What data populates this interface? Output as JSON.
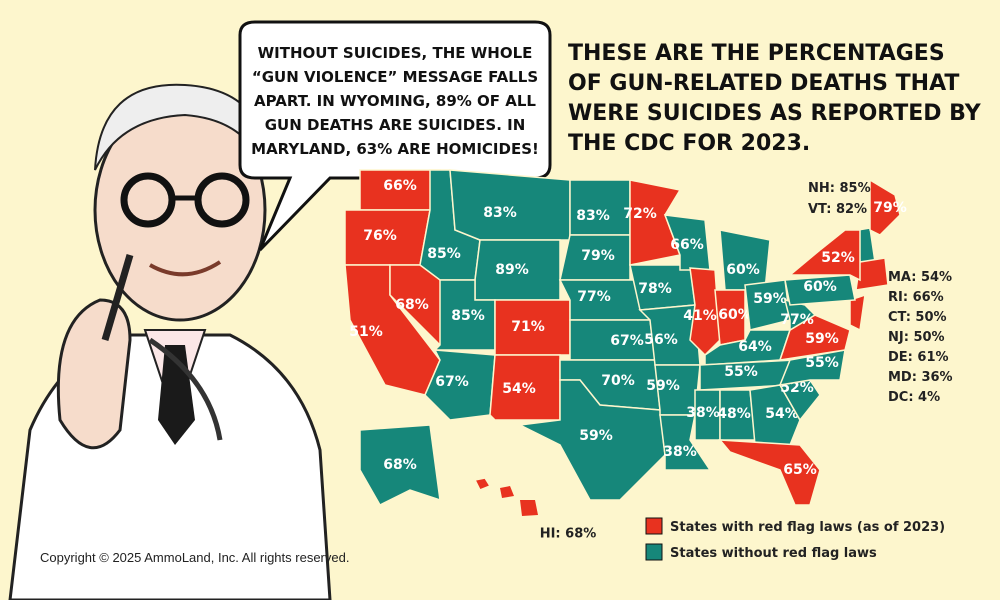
{
  "speech_bubble": [
    "WITHOUT SUICIDES, THE WHOLE",
    "“GUN VIOLENCE” MESSAGE FALLS",
    "APART. IN WYOMING, 89% OF ALL",
    "GUN DEATHS ARE SUICIDES. IN",
    "MARYLAND, 63% ARE HOMICIDES!"
  ],
  "title": [
    "THESE ARE THE  PERCENTAGES",
    "OF GUN-RELATED DEATHS THAT",
    "WERE SUICIDES AS REPORTED BY",
    "THE CDC FOR 2023."
  ],
  "map": {
    "regions": [
      {
        "label": "66%",
        "color": "#e8321f"
      },
      {
        "label": "76%",
        "color": "#e8321f"
      },
      {
        "label": "51%",
        "color": "#e8321f"
      },
      {
        "label": "68%",
        "color": "#e8321f"
      },
      {
        "label": "85%",
        "color": "#16877a"
      },
      {
        "label": "83%",
        "color": "#16877a"
      },
      {
        "label": "89%",
        "color": "#16877a"
      },
      {
        "label": "85%",
        "color": "#16877a"
      },
      {
        "label": "71%",
        "color": "#e8321f"
      },
      {
        "label": "67%",
        "color": "#16877a"
      },
      {
        "label": "54%",
        "color": "#e8321f"
      },
      {
        "label": "83%",
        "color": "#16877a"
      },
      {
        "label": "79%",
        "color": "#16877a"
      },
      {
        "label": "77%",
        "color": "#16877a"
      },
      {
        "label": "67%",
        "color": "#16877a"
      },
      {
        "label": "70%",
        "color": "#16877a"
      },
      {
        "label": "59%",
        "color": "#16877a"
      },
      {
        "label": "72%",
        "color": "#e8321f"
      },
      {
        "label": "78%",
        "color": "#16877a"
      },
      {
        "label": "56%",
        "color": "#16877a"
      },
      {
        "label": "59%",
        "color": "#16877a"
      },
      {
        "label": "38%",
        "color": "#16877a"
      },
      {
        "label": "66%",
        "color": "#16877a"
      },
      {
        "label": "41%",
        "color": "#e8321f"
      },
      {
        "label": "60%",
        "color": "#16877a"
      },
      {
        "label": "60%",
        "color": "#e8321f"
      },
      {
        "label": "59%",
        "color": "#16877a"
      },
      {
        "label": "64%",
        "color": "#16877a"
      },
      {
        "label": "55%",
        "color": "#16877a"
      },
      {
        "label": "38%",
        "color": "#16877a"
      },
      {
        "label": "48%",
        "color": "#16877a"
      },
      {
        "label": "54%",
        "color": "#16877a"
      },
      {
        "label": "65%",
        "color": "#e8321f"
      },
      {
        "label": "52%",
        "color": "#16877a"
      },
      {
        "label": "55%",
        "color": "#16877a"
      },
      {
        "label": "59%",
        "color": "#e8321f"
      },
      {
        "label": "77%",
        "color": "#16877a"
      },
      {
        "label": "60%",
        "color": "#16877a"
      },
      {
        "label": "52%",
        "color": "#e8321f"
      },
      {
        "label": "79%",
        "color": "#e8321f"
      },
      {
        "label": "68%",
        "color": "#16877a"
      },
      {
        "label": "HI: 68%",
        "color": "#e8321f"
      }
    ],
    "notes_top": [
      "NH: 85%",
      "VT: 82%"
    ],
    "notes_right": [
      "MA: 54%",
      "RI: 66%",
      "CT: 50%",
      "NJ: 50%",
      "DE: 61%",
      "MD: 36%",
      "DC: 4%"
    ]
  },
  "legend": [
    {
      "label": "States with red flag laws (as of 2023)",
      "color": "#e8321f"
    },
    {
      "label": "States without red flag laws",
      "color": "#16877a"
    }
  ],
  "copyright": "Copyright © 2025 AmmoLand, Inc. All rights reserved."
}
